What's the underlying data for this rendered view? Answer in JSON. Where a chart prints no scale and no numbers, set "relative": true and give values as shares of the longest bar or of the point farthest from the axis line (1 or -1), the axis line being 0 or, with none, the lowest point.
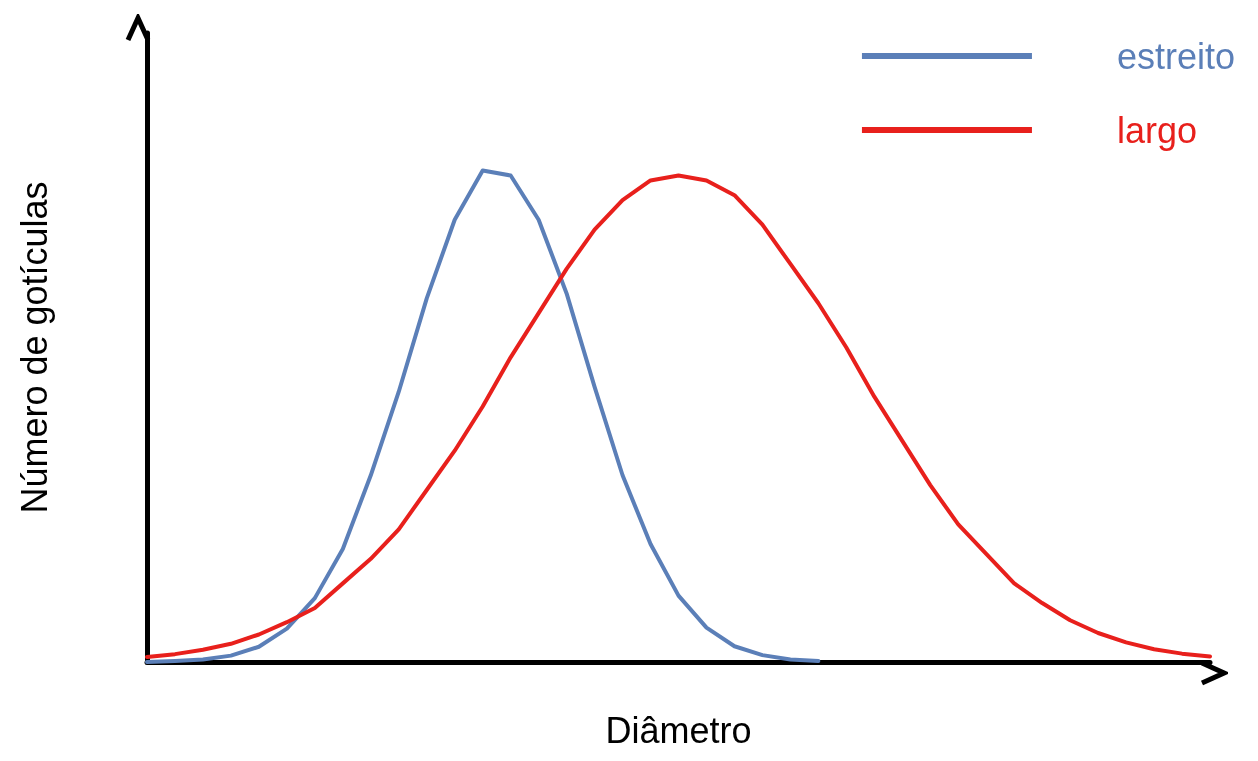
{
  "chart_data": {
    "type": "line",
    "relative": true,
    "xlabel": "Diâmetro",
    "ylabel": "Número de gotículas",
    "legend": "top right",
    "grid": false,
    "marker": "none",
    "line_style": "solid",
    "categories": [
      null,
      null,
      null,
      null,
      null,
      null,
      null,
      null,
      null,
      null,
      null,
      null,
      null,
      null,
      null,
      null,
      null,
      null,
      null,
      null,
      null,
      null,
      null,
      null,
      null,
      null,
      null,
      null,
      null,
      null,
      null,
      null,
      null,
      null,
      null,
      null,
      null,
      null,
      null
    ],
    "series": [
      {
        "name": "estreito",
        "color": "#5b7fb8",
        "values": [
          0,
          0.002,
          0.005,
          0.013,
          0.031,
          0.068,
          0.13,
          0.23,
          0.38,
          0.55,
          0.74,
          0.9,
          1,
          0.99,
          0.9,
          0.75,
          0.56,
          0.38,
          0.24,
          0.135,
          0.07,
          0.032,
          0.014,
          0.005,
          0.002,
          null,
          null,
          null,
          null,
          null,
          null,
          null,
          null,
          null,
          null,
          null,
          null,
          null,
          null
        ]
      },
      {
        "name": "largo",
        "color": "#e8201c",
        "values": [
          0.01,
          0.016,
          0.025,
          0.037,
          0.056,
          0.081,
          0.11,
          0.16,
          0.21,
          0.27,
          0.35,
          0.43,
          0.52,
          0.62,
          0.71,
          0.8,
          0.88,
          0.94,
          0.98,
          0.99,
          0.98,
          0.95,
          0.89,
          0.81,
          0.73,
          0.64,
          0.54,
          0.45,
          0.36,
          0.28,
          0.22,
          0.16,
          0.12,
          0.085,
          0.059,
          0.04,
          0.026,
          0.017,
          0.011
        ]
      }
    ]
  }
}
